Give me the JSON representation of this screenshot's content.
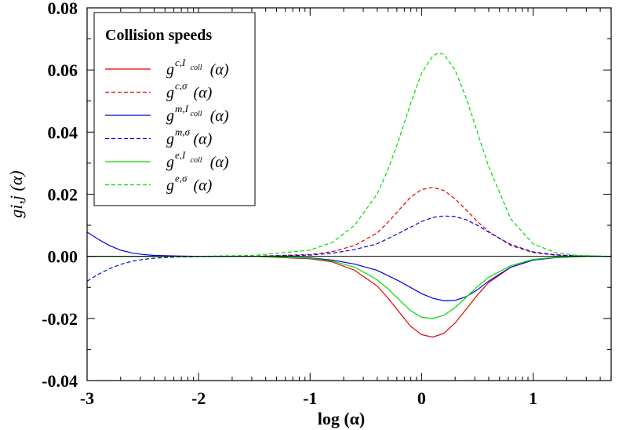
{
  "chart_data": {
    "type": "line",
    "xlabel": "log (α)",
    "ylabel": "gi,j (α)",
    "xlim": [
      -3.0,
      1.7
    ],
    "ylim": [
      -0.04,
      0.08
    ],
    "x_ticks": [
      -3,
      -2,
      -1,
      0,
      1
    ],
    "x_tick_labels": [
      "-3",
      "-2",
      "-1",
      "0",
      "1"
    ],
    "x_scale": "log",
    "y_ticks": [
      -0.04,
      -0.02,
      0.0,
      0.02,
      0.04,
      0.06,
      0.08
    ],
    "y_tick_labels": [
      "-0.04",
      "-0.02",
      "0.00",
      "0.02",
      "0.04",
      "0.06",
      "0.08"
    ],
    "grid": false,
    "legend": {
      "title": "Collision speeds",
      "placement": "top-left"
    },
    "series": [
      {
        "name": "g^{c,I_coll}(α)",
        "base": "g",
        "sup": "c,I",
        "sub": "coll",
        "color": "#e00000",
        "dash": "solid",
        "x": [
          -3.0,
          -2.5,
          -2.0,
          -1.5,
          -1.0,
          -0.8,
          -0.6,
          -0.4,
          -0.3,
          -0.2,
          -0.1,
          0.0,
          0.1,
          0.2,
          0.3,
          0.4,
          0.5,
          0.6,
          0.8,
          1.0,
          1.2,
          1.4,
          1.7
        ],
        "y": [
          0.0,
          0.0,
          0.0,
          0.0,
          -0.0008,
          -0.0018,
          -0.0045,
          -0.0095,
          -0.0135,
          -0.018,
          -0.0225,
          -0.0252,
          -0.026,
          -0.0248,
          -0.0215,
          -0.017,
          -0.0125,
          -0.0085,
          -0.0035,
          -0.0012,
          -0.0004,
          -0.0001,
          0.0
        ]
      },
      {
        "name": "g^{c,σ}(α)",
        "base": "g",
        "sup": "c,σ",
        "sub": "",
        "color": "#e00000",
        "dash": "dashed",
        "x": [
          -3.0,
          -2.5,
          -2.0,
          -1.5,
          -1.0,
          -0.8,
          -0.6,
          -0.4,
          -0.3,
          -0.2,
          -0.1,
          0.0,
          0.1,
          0.2,
          0.3,
          0.4,
          0.5,
          0.6,
          0.8,
          1.0,
          1.2,
          1.4,
          1.7
        ],
        "y": [
          0.0,
          0.0,
          0.0,
          0.0,
          0.0006,
          0.0015,
          0.0035,
          0.0075,
          0.011,
          0.015,
          0.019,
          0.0215,
          0.0222,
          0.0212,
          0.0185,
          0.015,
          0.0112,
          0.008,
          0.0035,
          0.0012,
          0.0004,
          0.0001,
          0.0
        ]
      },
      {
        "name": "g^{m,I_coll}(α)",
        "base": "g",
        "sup": "m,I",
        "sub": "coll",
        "color": "#0000e0",
        "dash": "solid",
        "x": [
          -3.0,
          -2.9,
          -2.8,
          -2.7,
          -2.6,
          -2.5,
          -2.4,
          -2.2,
          -2.0,
          -1.5,
          -1.0,
          -0.8,
          -0.6,
          -0.4,
          -0.2,
          0.0,
          0.1,
          0.2,
          0.3,
          0.4,
          0.5,
          0.6,
          0.8,
          1.0,
          1.2,
          1.4,
          1.7
        ],
        "y": [
          0.0078,
          0.0055,
          0.0035,
          0.002,
          0.0011,
          0.0006,
          0.0003,
          0.0001,
          0.0,
          0.0,
          -0.0005,
          -0.0012,
          -0.0025,
          -0.0045,
          -0.008,
          -0.012,
          -0.0135,
          -0.0143,
          -0.0142,
          -0.013,
          -0.0108,
          -0.008,
          -0.0035,
          -0.0012,
          -0.0004,
          -0.0001,
          0.0
        ]
      },
      {
        "name": "g^{m,σ}(α)",
        "base": "g",
        "sup": "m,σ",
        "sub": "",
        "color": "#0000e0",
        "dash": "dashed",
        "x": [
          -3.0,
          -2.9,
          -2.8,
          -2.7,
          -2.6,
          -2.5,
          -2.4,
          -2.2,
          -2.0,
          -1.5,
          -1.0,
          -0.8,
          -0.6,
          -0.4,
          -0.2,
          0.0,
          0.1,
          0.2,
          0.3,
          0.4,
          0.5,
          0.6,
          0.8,
          1.0,
          1.2,
          1.4,
          1.7
        ],
        "y": [
          -0.008,
          -0.0058,
          -0.004,
          -0.0026,
          -0.0016,
          -0.001,
          -0.0006,
          -0.0002,
          -0.0001,
          0.0,
          0.0004,
          0.001,
          0.0022,
          0.004,
          0.0075,
          0.0112,
          0.0125,
          0.013,
          0.0128,
          0.0118,
          0.01,
          0.0078,
          0.0038,
          0.0014,
          0.0005,
          0.0001,
          0.0
        ]
      },
      {
        "name": "g^{e,I_coll}(α)",
        "base": "g",
        "sup": "e,I",
        "sub": "coll",
        "color": "#00dd00",
        "dash": "solid",
        "x": [
          -3.0,
          -2.5,
          -2.0,
          -1.5,
          -1.0,
          -0.8,
          -0.6,
          -0.4,
          -0.3,
          -0.2,
          -0.1,
          0.0,
          0.1,
          0.2,
          0.3,
          0.4,
          0.5,
          0.6,
          0.8,
          1.0,
          1.2,
          1.4,
          1.7
        ],
        "y": [
          0.0,
          0.0,
          0.0,
          0.0,
          -0.0006,
          -0.0015,
          -0.0035,
          -0.0075,
          -0.0105,
          -0.014,
          -0.0175,
          -0.0196,
          -0.02,
          -0.019,
          -0.0165,
          -0.0132,
          -0.0098,
          -0.0068,
          -0.003,
          -0.001,
          -0.0003,
          -0.0001,
          0.0
        ]
      },
      {
        "name": "g^{e,σ}(α)",
        "base": "g",
        "sup": "e,σ",
        "sub": "",
        "color": "#00dd00",
        "dash": "dashed",
        "x": [
          -3.0,
          -2.5,
          -2.0,
          -1.5,
          -1.0,
          -0.8,
          -0.6,
          -0.4,
          -0.3,
          -0.2,
          -0.1,
          0.0,
          0.1,
          0.15,
          0.2,
          0.3,
          0.4,
          0.5,
          0.6,
          0.8,
          1.0,
          1.2,
          1.4,
          1.7
        ],
        "y": [
          0.0,
          0.0,
          0.0,
          0.0003,
          0.002,
          0.0045,
          0.01,
          0.02,
          0.028,
          0.038,
          0.049,
          0.059,
          0.0645,
          0.0655,
          0.065,
          0.06,
          0.051,
          0.04,
          0.029,
          0.012,
          0.004,
          0.0012,
          0.0003,
          0.0
        ]
      }
    ]
  }
}
